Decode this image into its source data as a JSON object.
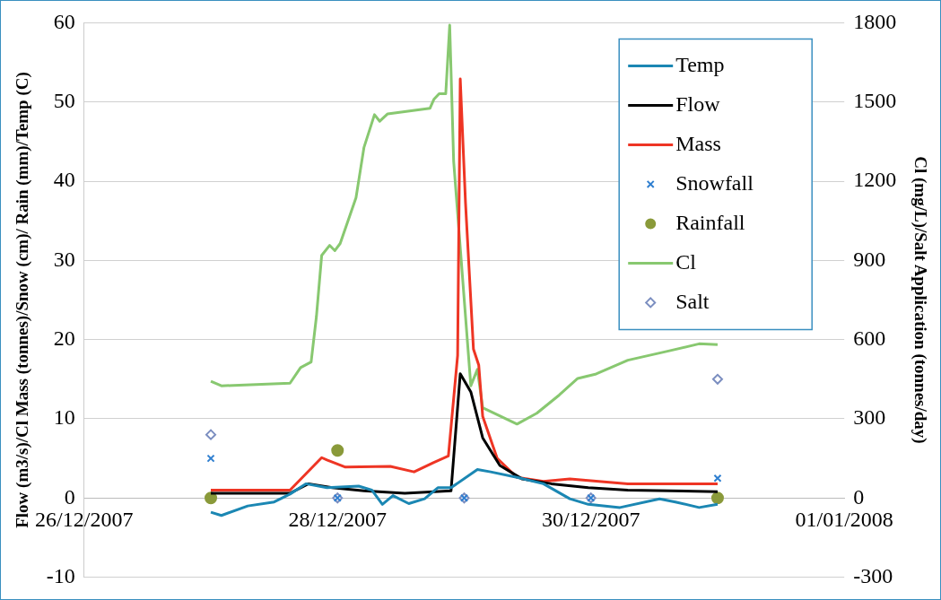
{
  "chart_data": {
    "type": "line",
    "ylabel": "Flow (m3/s)/Cl Mass (tonnes)/Snow (cm)/ Rain (mm)/Temp (C)",
    "y2label": "Cl (mg/L)/Salt Application (tonnes/day)",
    "xlim": [
      "2007-12-26",
      "2008-01-01"
    ],
    "xticks": [
      {
        "value": "2007-12-26",
        "label": "26/12/2007"
      },
      {
        "value": "2007-12-28",
        "label": "28/12/2007"
      },
      {
        "value": "2007-12-30",
        "label": "30/12/2007"
      },
      {
        "value": "2008-01-01",
        "label": "01/01/2008"
      }
    ],
    "ylim": [
      -10,
      60
    ],
    "yticks": [
      -10,
      0,
      10,
      20,
      30,
      40,
      50,
      60
    ],
    "y2lim": [
      -300,
      1800
    ],
    "y2ticks": [
      -300,
      0,
      300,
      600,
      900,
      1200,
      1500,
      1800
    ],
    "grid": "y",
    "legend": "top right",
    "series": [
      {
        "name": "Temp",
        "type": "line",
        "color": "#1b87b3",
        "marker": "none",
        "x": [
          "2007-12-27T00:00",
          "2007-12-27T02:00",
          "2007-12-27T07:00",
          "2007-12-27T12:00",
          "2007-12-27T15:00",
          "2007-12-27T18:00",
          "2007-12-27T22:00",
          "2007-12-28T04:00",
          "2007-12-28T06:30",
          "2007-12-28T08:30",
          "2007-12-28T10:30",
          "2007-12-28T13:30",
          "2007-12-28T16:30",
          "2007-12-28T19:00",
          "2007-12-28T21:30",
          "2007-12-29T02:30",
          "2007-12-29T05:00",
          "2007-12-29T10:00",
          "2007-12-29T15:00",
          "2007-12-29T20:00",
          "2007-12-29T23:30",
          "2007-12-30T05:30",
          "2007-12-30T13:00",
          "2007-12-30T16:00",
          "2007-12-30T20:30",
          "2007-12-31T00:00"
        ],
        "values": [
          -1.8,
          -2.2,
          -1.0,
          -0.5,
          0.5,
          1.8,
          1.3,
          1.5,
          1.0,
          -0.8,
          0.3,
          -0.7,
          -0.1,
          1.3,
          1.3,
          3.6,
          3.3,
          2.6,
          1.8,
          -0.1,
          -0.8,
          -1.2,
          -0.1,
          -0.5,
          -1.2,
          -0.8
        ]
      },
      {
        "name": "Flow",
        "type": "line",
        "color": "#000000",
        "marker": "none",
        "x": [
          "2007-12-27T00:00",
          "2007-12-27T15:00",
          "2007-12-27T18:30",
          "2007-12-27T23:00",
          "2007-12-28T05:00",
          "2007-12-28T12:45",
          "2007-12-28T21:30",
          "2007-12-28T23:15",
          "2007-12-29T01:15",
          "2007-12-29T03:30",
          "2007-12-29T06:45",
          "2007-12-29T11:00",
          "2007-12-29T16:30",
          "2007-12-29T23:30",
          "2007-12-30T07:00",
          "2007-12-31T00:00"
        ],
        "values": [
          0.6,
          0.6,
          1.8,
          1.3,
          0.9,
          0.6,
          0.9,
          15.7,
          13.4,
          7.6,
          4.1,
          2.4,
          1.8,
          1.3,
          1.0,
          0.8
        ]
      },
      {
        "name": "Mass",
        "type": "line",
        "color": "#ee3524",
        "marker": "none",
        "x": [
          "2007-12-27T00:00",
          "2007-12-27T15:00",
          "2007-12-27T21:00",
          "2007-12-27T22:00",
          "2007-12-28T01:30",
          "2007-12-28T10:00",
          "2007-12-28T14:30",
          "2007-12-28T18:15",
          "2007-12-28T21:00",
          "2007-12-28T22:45",
          "2007-12-28T23:15",
          "2007-12-29T00:15",
          "2007-12-29T01:45",
          "2007-12-29T02:45",
          "2007-12-29T03:30",
          "2007-12-29T06:15",
          "2007-12-29T10:00",
          "2007-12-29T15:00",
          "2007-12-29T20:00",
          "2007-12-30T07:00",
          "2007-12-31T00:00"
        ],
        "values": [
          1.0,
          1.0,
          5.1,
          4.8,
          3.9,
          4.0,
          3.3,
          4.5,
          5.3,
          18,
          52.9,
          37.2,
          18.8,
          16.8,
          10.3,
          5.0,
          2.6,
          2.1,
          2.4,
          1.8,
          1.8
        ]
      },
      {
        "name": "Snowfall",
        "type": "scatter",
        "color": "#2f7fd0",
        "marker": "cross",
        "x": [
          "2007-12-27",
          "2007-12-28",
          "2007-12-29",
          "2007-12-30",
          "2007-12-31"
        ],
        "values": [
          5,
          0,
          0,
          0,
          2.5
        ]
      },
      {
        "name": "Rainfall",
        "type": "scatter",
        "color": "#8a9a3a",
        "marker": "circle",
        "x": [
          "2007-12-27",
          "2007-12-28",
          "2007-12-31"
        ],
        "values": [
          0,
          6,
          0
        ]
      },
      {
        "name": "Cl",
        "type": "line",
        "color": "#88c870",
        "marker": "none",
        "axis": "y2",
        "x": [
          "2007-12-27T00:00",
          "2007-12-27T02:00",
          "2007-12-27T15:00",
          "2007-12-27T17:00",
          "2007-12-27T19:00",
          "2007-12-27T20:00",
          "2007-12-27T21:00",
          "2007-12-27T22:30",
          "2007-12-27T23:30",
          "2007-12-28T00:30",
          "2007-12-28T03:30",
          "2007-12-28T05:00",
          "2007-12-28T07:00",
          "2007-12-28T08:00",
          "2007-12-28T09:30",
          "2007-12-28T17:30",
          "2007-12-28T18:15",
          "2007-12-28T19:15",
          "2007-12-28T20:30",
          "2007-12-28T21:15",
          "2007-12-28T22:00",
          "2007-12-29T01:15",
          "2007-12-29T02:30",
          "2007-12-29T03:30",
          "2007-12-29T10:00",
          "2007-12-29T13:45",
          "2007-12-29T18:00",
          "2007-12-29T21:30",
          "2007-12-30T01:00",
          "2007-12-30T07:00",
          "2007-12-30T14:30",
          "2007-12-30T20:30",
          "2007-12-31T00:00"
        ],
        "values": [
          442,
          425,
          435,
          494,
          515,
          687,
          919,
          957,
          937,
          964,
          1137,
          1327,
          1452,
          1427,
          1455,
          1476,
          1510,
          1531,
          1531,
          1791,
          1275,
          425,
          487,
          342,
          280,
          321,
          390,
          453,
          470,
          522,
          556,
          584,
          581
        ]
      },
      {
        "name": "Salt",
        "type": "scatter",
        "color": "#7b8ec0",
        "marker": "diamond",
        "x": [
          "2007-12-27",
          "2007-12-28",
          "2007-12-29",
          "2007-12-30",
          "2007-12-31"
        ],
        "values": [
          8,
          0,
          0,
          0,
          15
        ]
      }
    ]
  }
}
